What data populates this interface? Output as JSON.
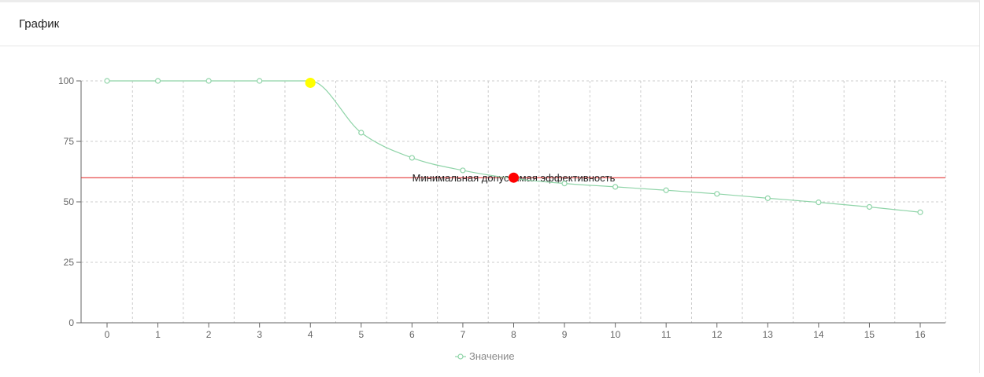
{
  "card": {
    "title": "График"
  },
  "chart_data": {
    "type": "line",
    "x": [
      0,
      1,
      2,
      3,
      4,
      5,
      6,
      7,
      8,
      9,
      10,
      11,
      12,
      13,
      14,
      15,
      16
    ],
    "series": [
      {
        "name": "Значение",
        "color": "#8fd4a8",
        "values": [
          100,
          100,
          100,
          100,
          100,
          78.6,
          68.2,
          63,
          59.6,
          57.6,
          56.2,
          54.8,
          53.3,
          51.5,
          49.8,
          47.9,
          45.7
        ]
      }
    ],
    "ylim": [
      0,
      100
    ],
    "yticks": [
      0,
      25,
      50,
      75,
      100
    ],
    "grid": true,
    "legend_position": "bottom-center",
    "threshold": {
      "value": 60,
      "label": "Минимальная допустимая эффективность",
      "color": "#e02020"
    },
    "markers": [
      {
        "x": 4,
        "y": 99.2,
        "color": "#ffff00"
      },
      {
        "x": 8,
        "y": 60,
        "color": "#ff0000"
      }
    ]
  }
}
